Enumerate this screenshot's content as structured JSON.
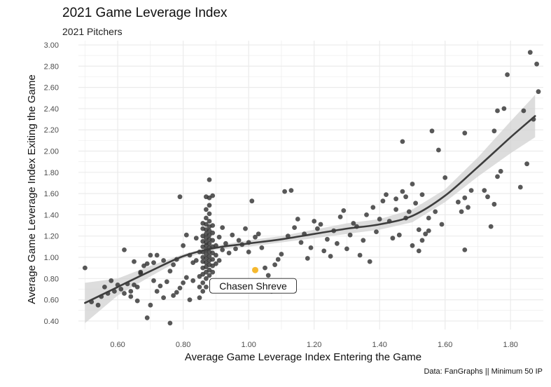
{
  "chart_data": {
    "type": "scatter",
    "title": "2021 Game Leverage Index",
    "subtitle": "2021 Pitchers",
    "xlabel": "Average Game Leverage Index Entering the Game",
    "ylabel": "Average Game Leverage Index Exiting the Game",
    "caption": "Data: FanGraphs || Minimum 50 IP",
    "xlim": [
      0.48,
      1.9
    ],
    "ylim": [
      0.32,
      3.04
    ],
    "xticks": [
      0.6,
      0.8,
      1.0,
      1.2,
      1.4,
      1.6,
      1.8
    ],
    "xtick_labels": [
      "0.60",
      "0.80",
      "1.00",
      "1.20",
      "1.40",
      "1.60",
      "1.80"
    ],
    "yticks": [
      0.4,
      0.6,
      0.8,
      1.0,
      1.2,
      1.4,
      1.6,
      1.8,
      2.0,
      2.2,
      2.4,
      2.6,
      2.8,
      3.0
    ],
    "ytick_labels": [
      "0.40",
      "0.60",
      "0.80",
      "1.00",
      "1.20",
      "1.40",
      "1.60",
      "1.80",
      "2.00",
      "2.20",
      "2.40",
      "2.60",
      "2.80",
      "3.00"
    ],
    "grid": true,
    "colors": {
      "points": "#333333",
      "highlight": "#f5b82e",
      "smooth": "#3d3d3d",
      "band": "#cfcfcf",
      "grid": "#ebebeb"
    },
    "highlight": {
      "name": "Chasen Shreve",
      "x": 1.02,
      "y": 0.88
    },
    "smooth": {
      "x": [
        0.5,
        0.6,
        0.7,
        0.8,
        0.9,
        1.0,
        1.1,
        1.2,
        1.3,
        1.4,
        1.5,
        1.6,
        1.7,
        1.8,
        1.875
      ],
      "y": [
        0.57,
        0.72,
        0.87,
        1.01,
        1.09,
        1.13,
        1.17,
        1.22,
        1.27,
        1.31,
        1.39,
        1.58,
        1.85,
        2.13,
        2.33
      ],
      "lower": [
        0.38,
        0.64,
        0.82,
        0.99,
        1.07,
        1.1,
        1.14,
        1.18,
        1.22,
        1.26,
        1.33,
        1.52,
        1.76,
        1.98,
        2.13
      ],
      "upper": [
        0.76,
        0.8,
        0.92,
        1.03,
        1.11,
        1.16,
        1.2,
        1.26,
        1.32,
        1.36,
        1.45,
        1.64,
        1.94,
        2.28,
        2.53
      ]
    },
    "points": [
      [
        0.5,
        0.9
      ],
      [
        0.52,
        0.58
      ],
      [
        0.54,
        0.55
      ],
      [
        0.55,
        0.63
      ],
      [
        0.56,
        0.72
      ],
      [
        0.57,
        0.66
      ],
      [
        0.58,
        0.78
      ],
      [
        0.59,
        0.68
      ],
      [
        0.6,
        0.74
      ],
      [
        0.61,
        0.7
      ],
      [
        0.62,
        0.66
      ],
      [
        0.63,
        0.75
      ],
      [
        0.64,
        0.63
      ],
      [
        0.65,
        0.74
      ],
      [
        0.66,
        0.72
      ],
      [
        0.62,
        1.07
      ],
      [
        0.67,
        0.86
      ],
      [
        0.68,
        0.92
      ],
      [
        0.69,
        0.43
      ],
      [
        0.7,
        0.55
      ],
      [
        0.71,
        0.78
      ],
      [
        0.72,
        0.68
      ],
      [
        0.73,
        0.73
      ],
      [
        0.74,
        0.62
      ],
      [
        0.75,
        0.77
      ],
      [
        0.76,
        0.38
      ],
      [
        0.77,
        0.64
      ],
      [
        0.78,
        0.67
      ],
      [
        0.79,
        0.71
      ],
      [
        0.8,
        0.76
      ],
      [
        0.81,
        0.81
      ],
      [
        0.82,
        0.6
      ],
      [
        0.83,
        0.78
      ],
      [
        0.84,
        0.97
      ],
      [
        0.85,
        0.82
      ],
      [
        0.79,
        1.57
      ],
      [
        0.8,
        1.11
      ],
      [
        0.81,
        1.21
      ],
      [
        0.82,
        1.02
      ],
      [
        0.83,
        0.95
      ],
      [
        0.84,
        1.18
      ],
      [
        0.85,
        1.05
      ],
      [
        0.78,
        0.98
      ],
      [
        0.77,
        0.93
      ],
      [
        0.76,
        0.87
      ],
      [
        0.74,
        0.97
      ],
      [
        0.72,
        1.02
      ],
      [
        0.71,
        0.95
      ],
      [
        0.7,
        1.02
      ],
      [
        0.69,
        0.94
      ],
      [
        0.67,
        0.85
      ],
      [
        0.65,
        0.96
      ],
      [
        0.64,
        0.68
      ],
      [
        0.66,
        0.59
      ],
      [
        0.86,
        0.84
      ],
      [
        0.86,
        0.9
      ],
      [
        0.86,
        0.96
      ],
      [
        0.86,
        1.0
      ],
      [
        0.86,
        1.05
      ],
      [
        0.86,
        1.1
      ],
      [
        0.86,
        1.15
      ],
      [
        0.86,
        1.2
      ],
      [
        0.86,
        1.27
      ],
      [
        0.86,
        1.32
      ],
      [
        0.87,
        0.72
      ],
      [
        0.87,
        0.8
      ],
      [
        0.87,
        0.86
      ],
      [
        0.87,
        0.91
      ],
      [
        0.87,
        0.95
      ],
      [
        0.87,
        0.99
      ],
      [
        0.87,
        1.03
      ],
      [
        0.87,
        1.07
      ],
      [
        0.87,
        1.11
      ],
      [
        0.87,
        1.14
      ],
      [
        0.87,
        1.18
      ],
      [
        0.87,
        1.22
      ],
      [
        0.87,
        1.26
      ],
      [
        0.87,
        1.31
      ],
      [
        0.87,
        1.37
      ],
      [
        0.87,
        1.45
      ],
      [
        0.87,
        1.57
      ],
      [
        0.88,
        0.83
      ],
      [
        0.88,
        0.88
      ],
      [
        0.88,
        0.93
      ],
      [
        0.88,
        0.97
      ],
      [
        0.88,
        1.01
      ],
      [
        0.88,
        1.05
      ],
      [
        0.88,
        1.09
      ],
      [
        0.88,
        1.13
      ],
      [
        0.88,
        1.17
      ],
      [
        0.88,
        1.21
      ],
      [
        0.88,
        1.25
      ],
      [
        0.88,
        1.29
      ],
      [
        0.88,
        1.34
      ],
      [
        0.88,
        1.41
      ],
      [
        0.88,
        1.49
      ],
      [
        0.88,
        1.56
      ],
      [
        0.88,
        1.73
      ],
      [
        0.89,
        0.86
      ],
      [
        0.89,
        0.92
      ],
      [
        0.89,
        0.98
      ],
      [
        0.89,
        1.04
      ],
      [
        0.89,
        1.1
      ],
      [
        0.89,
        1.16
      ],
      [
        0.89,
        1.23
      ],
      [
        0.89,
        1.3
      ],
      [
        0.89,
        1.58
      ],
      [
        0.85,
        0.72
      ],
      [
        0.86,
        0.68
      ],
      [
        0.85,
        0.62
      ],
      [
        0.86,
        0.76
      ],
      [
        0.9,
        0.94
      ],
      [
        0.9,
        1.02
      ],
      [
        0.9,
        1.11
      ],
      [
        0.91,
        1.19
      ],
      [
        0.91,
        0.97
      ],
      [
        0.92,
        1.07
      ],
      [
        0.92,
        1.28
      ],
      [
        0.93,
        1.13
      ],
      [
        0.94,
        1.04
      ],
      [
        0.95,
        1.21
      ],
      [
        0.96,
        1.08
      ],
      [
        0.97,
        1.16
      ],
      [
        0.98,
        1.12
      ],
      [
        0.99,
        1.27
      ],
      [
        1.0,
        1.14
      ],
      [
        1.0,
        1.05
      ],
      [
        1.01,
        1.53
      ],
      [
        1.02,
        1.19
      ],
      [
        1.03,
        1.22
      ],
      [
        1.04,
        1.09
      ],
      [
        1.05,
        0.9
      ],
      [
        1.06,
        0.83
      ],
      [
        1.07,
        0.68
      ],
      [
        1.08,
        0.93
      ],
      [
        1.09,
        0.98
      ],
      [
        1.1,
        1.03
      ],
      [
        1.11,
        1.62
      ],
      [
        1.12,
        1.2
      ],
      [
        1.13,
        1.63
      ],
      [
        1.14,
        1.28
      ],
      [
        1.15,
        1.36
      ],
      [
        1.16,
        1.14
      ],
      [
        1.17,
        1.22
      ],
      [
        1.18,
        0.99
      ],
      [
        1.19,
        1.09
      ],
      [
        1.2,
        1.34
      ],
      [
        1.21,
        1.27
      ],
      [
        1.22,
        1.31
      ],
      [
        1.23,
        1.06
      ],
      [
        1.24,
        1.17
      ],
      [
        1.25,
        1.01
      ],
      [
        1.26,
        1.25
      ],
      [
        1.27,
        1.13
      ],
      [
        1.28,
        1.38
      ],
      [
        1.29,
        1.44
      ],
      [
        1.3,
        1.08
      ],
      [
        1.31,
        1.21
      ],
      [
        1.32,
        1.32
      ],
      [
        1.33,
        1.29
      ],
      [
        1.34,
        1.02
      ],
      [
        1.35,
        1.16
      ],
      [
        1.36,
        1.4
      ],
      [
        1.37,
        0.96
      ],
      [
        1.38,
        1.47
      ],
      [
        1.39,
        1.24
      ],
      [
        1.4,
        1.36
      ],
      [
        1.41,
        1.53
      ],
      [
        1.42,
        1.59
      ],
      [
        1.43,
        1.34
      ],
      [
        1.44,
        1.18
      ],
      [
        1.45,
        1.55
      ],
      [
        1.46,
        1.21
      ],
      [
        1.47,
        1.62
      ],
      [
        1.48,
        1.57
      ],
      [
        1.49,
        1.43
      ],
      [
        1.5,
        1.11
      ],
      [
        1.45,
        1.45
      ],
      [
        1.48,
        1.37
      ],
      [
        1.47,
        2.09
      ],
      [
        1.5,
        1.69
      ],
      [
        1.51,
        1.51
      ],
      [
        1.52,
        1.26
      ],
      [
        1.53,
        1.59
      ],
      [
        1.54,
        1.22
      ],
      [
        1.55,
        1.37
      ],
      [
        1.56,
        2.19
      ],
      [
        1.57,
        1.43
      ],
      [
        1.58,
        2.01
      ],
      [
        1.59,
        1.31
      ],
      [
        1.6,
        1.75
      ],
      [
        1.52,
        1.06
      ],
      [
        1.55,
        1.25
      ],
      [
        1.53,
        1.16
      ],
      [
        1.64,
        1.52
      ],
      [
        1.65,
        1.43
      ],
      [
        1.66,
        1.07
      ],
      [
        1.66,
        1.56
      ],
      [
        1.67,
        1.47
      ],
      [
        1.68,
        1.63
      ],
      [
        1.66,
        2.17
      ],
      [
        1.72,
        1.63
      ],
      [
        1.73,
        1.57
      ],
      [
        1.74,
        1.29
      ],
      [
        1.75,
        2.19
      ],
      [
        1.76,
        1.76
      ],
      [
        1.77,
        1.81
      ],
      [
        1.76,
        2.38
      ],
      [
        1.78,
        2.4
      ],
      [
        1.79,
        2.72
      ],
      [
        1.83,
        1.66
      ],
      [
        1.84,
        2.38
      ],
      [
        1.85,
        1.88
      ],
      [
        1.86,
        2.93
      ],
      [
        1.87,
        2.3
      ],
      [
        1.88,
        2.82
      ],
      [
        1.885,
        2.56
      ],
      [
        1.75,
        1.5
      ]
    ]
  }
}
